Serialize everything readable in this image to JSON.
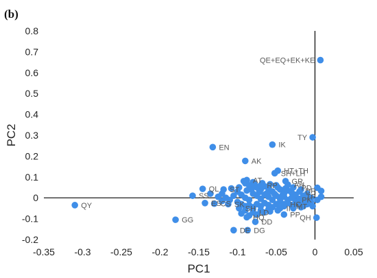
{
  "chart_data": {
    "type": "scatter",
    "panel_label": "(b)",
    "xlabel": "PC1",
    "ylabel": "PC2",
    "xlim": [
      -0.35,
      0.05
    ],
    "ylim": [
      -0.2,
      0.8
    ],
    "x_ticks": [
      "-0.35",
      "-0.3",
      "-0.25",
      "-0.2",
      "-0.15",
      "-0.1",
      "-0.05",
      "0",
      "0.05"
    ],
    "y_ticks": [
      "-0.2",
      "-0.1",
      "0",
      "0.1",
      "0.2",
      "0.3",
      "0.4",
      "0.5",
      "0.6",
      "0.7",
      "0.8"
    ],
    "grid": false,
    "marker_color": "#3f8ee8",
    "label_color": "#595959",
    "labeled_points": [
      {
        "label": "QE+EQ+EK+KE",
        "x": 0.007,
        "y": 0.66
      },
      {
        "label": "TY",
        "x": -0.003,
        "y": 0.29
      },
      {
        "label": "IK",
        "x": -0.055,
        "y": 0.255
      },
      {
        "label": "EN",
        "x": -0.132,
        "y": 0.243
      },
      {
        "label": "AK",
        "x": -0.09,
        "y": 0.177
      },
      {
        "label": "HT+TH",
        "x": -0.048,
        "y": 0.13
      },
      {
        "label": "SH+LH",
        "x": -0.052,
        "y": 0.118
      },
      {
        "label": "AT",
        "x": -0.088,
        "y": 0.085
      },
      {
        "label": "GR",
        "x": -0.038,
        "y": 0.08
      },
      {
        "label": "AH",
        "x": -0.035,
        "y": 0.063
      },
      {
        "label": "QL",
        "x": -0.145,
        "y": 0.043
      },
      {
        "label": "ST",
        "x": -0.118,
        "y": 0.04
      },
      {
        "label": "PD",
        "x": 0.003,
        "y": 0.048
      },
      {
        "label": "DP",
        "x": 0.008,
        "y": 0.033
      },
      {
        "label": "RP",
        "x": -0.07,
        "y": 0.06
      },
      {
        "label": "SS",
        "x": -0.158,
        "y": 0.01
      },
      {
        "label": "QY",
        "x": -0.31,
        "y": -0.035
      },
      {
        "label": "GG",
        "x": -0.18,
        "y": -0.105
      },
      {
        "label": "ES",
        "x": -0.142,
        "y": -0.025
      },
      {
        "label": "CS",
        "x": -0.13,
        "y": -0.028
      },
      {
        "label": "SK",
        "x": -0.112,
        "y": -0.03
      },
      {
        "label": "SH",
        "x": -0.098,
        "y": -0.05
      },
      {
        "label": "MT",
        "x": -0.003,
        "y": -0.04
      },
      {
        "label": "PK",
        "x": 0.003,
        "y": -0.01
      },
      {
        "label": "TP",
        "x": 0.008,
        "y": 0.005
      },
      {
        "label": "HC",
        "x": -0.04,
        "y": -0.03
      },
      {
        "label": "II",
        "x": -0.045,
        "y": -0.05
      },
      {
        "label": "PP",
        "x": -0.04,
        "y": -0.08
      },
      {
        "label": "QH",
        "x": 0.002,
        "y": -0.095
      },
      {
        "label": "LD",
        "x": -0.08,
        "y": -0.07
      },
      {
        "label": "HQ",
        "x": -0.088,
        "y": -0.093
      },
      {
        "label": "DD",
        "x": -0.077,
        "y": -0.115
      },
      {
        "label": "DE",
        "x": -0.105,
        "y": -0.155
      },
      {
        "label": "DG",
        "x": -0.087,
        "y": -0.155
      }
    ],
    "cluster_points": [
      {
        "x": -0.092,
        "y": 0.08
      },
      {
        "x": -0.09,
        "y": 0.07
      },
      {
        "x": -0.085,
        "y": 0.06
      },
      {
        "x": -0.08,
        "y": 0.075
      },
      {
        "x": -0.075,
        "y": 0.05
      },
      {
        "x": -0.07,
        "y": 0.04
      },
      {
        "x": -0.065,
        "y": 0.055
      },
      {
        "x": -0.06,
        "y": 0.045
      },
      {
        "x": -0.055,
        "y": 0.03
      },
      {
        "x": -0.05,
        "y": 0.06
      },
      {
        "x": -0.045,
        "y": 0.04
      },
      {
        "x": -0.04,
        "y": 0.02
      },
      {
        "x": -0.035,
        "y": 0.035
      },
      {
        "x": -0.03,
        "y": 0.025
      },
      {
        "x": -0.025,
        "y": 0.015
      },
      {
        "x": -0.02,
        "y": 0.03
      },
      {
        "x": -0.015,
        "y": 0.01
      },
      {
        "x": -0.01,
        "y": 0.02
      },
      {
        "x": -0.005,
        "y": 0.0
      },
      {
        "x": -0.1,
        "y": 0.03
      },
      {
        "x": -0.095,
        "y": 0.015
      },
      {
        "x": -0.09,
        "y": 0.0
      },
      {
        "x": -0.085,
        "y": -0.01
      },
      {
        "x": -0.08,
        "y": 0.02
      },
      {
        "x": -0.075,
        "y": 0.01
      },
      {
        "x": -0.07,
        "y": -0.005
      },
      {
        "x": -0.065,
        "y": 0.015
      },
      {
        "x": -0.06,
        "y": 0.005
      },
      {
        "x": -0.055,
        "y": -0.01
      },
      {
        "x": -0.05,
        "y": 0.01
      },
      {
        "x": -0.045,
        "y": -0.005
      },
      {
        "x": -0.04,
        "y": 0.005
      },
      {
        "x": -0.035,
        "y": -0.01
      },
      {
        "x": -0.03,
        "y": 0.0
      },
      {
        "x": -0.025,
        "y": -0.015
      },
      {
        "x": -0.02,
        "y": -0.005
      },
      {
        "x": -0.015,
        "y": -0.02
      },
      {
        "x": -0.01,
        "y": -0.01
      },
      {
        "x": -0.105,
        "y": 0.01
      },
      {
        "x": -0.11,
        "y": -0.01
      },
      {
        "x": -0.1,
        "y": -0.02
      },
      {
        "x": -0.095,
        "y": -0.03
      },
      {
        "x": -0.09,
        "y": -0.04
      },
      {
        "x": -0.085,
        "y": -0.035
      },
      {
        "x": -0.08,
        "y": -0.045
      },
      {
        "x": -0.075,
        "y": -0.03
      },
      {
        "x": -0.07,
        "y": -0.04
      },
      {
        "x": -0.065,
        "y": -0.025
      },
      {
        "x": -0.06,
        "y": -0.035
      },
      {
        "x": -0.055,
        "y": -0.045
      },
      {
        "x": -0.05,
        "y": -0.03
      },
      {
        "x": -0.045,
        "y": -0.02
      },
      {
        "x": -0.04,
        "y": -0.04
      },
      {
        "x": -0.035,
        "y": -0.025
      },
      {
        "x": -0.03,
        "y": -0.035
      },
      {
        "x": -0.025,
        "y": -0.03
      },
      {
        "x": -0.02,
        "y": -0.02
      },
      {
        "x": -0.015,
        "y": -0.04
      },
      {
        "x": -0.01,
        "y": -0.03
      },
      {
        "x": -0.005,
        "y": -0.02
      },
      {
        "x": -0.12,
        "y": 0.02
      },
      {
        "x": -0.125,
        "y": 0.005
      },
      {
        "x": -0.115,
        "y": 0.0
      },
      {
        "x": -0.12,
        "y": -0.015
      },
      {
        "x": -0.135,
        "y": 0.02
      },
      {
        "x": -0.108,
        "y": 0.045
      },
      {
        "x": -0.098,
        "y": 0.05
      },
      {
        "x": -0.082,
        "y": 0.04
      },
      {
        "x": -0.072,
        "y": 0.028
      },
      {
        "x": -0.062,
        "y": 0.022
      },
      {
        "x": -0.052,
        "y": 0.018
      },
      {
        "x": -0.042,
        "y": 0.012
      },
      {
        "x": -0.09,
        "y": -0.06
      },
      {
        "x": -0.08,
        "y": -0.055
      },
      {
        "x": -0.07,
        "y": -0.06
      },
      {
        "x": -0.06,
        "y": -0.055
      },
      {
        "x": -0.095,
        "y": -0.075
      },
      {
        "x": -0.085,
        "y": -0.085
      },
      {
        "x": -0.075,
        "y": -0.08
      },
      {
        "x": -0.066,
        "y": -0.07
      },
      {
        "x": -0.058,
        "y": -0.065
      },
      {
        "x": -0.048,
        "y": -0.06
      },
      {
        "x": -0.028,
        "y": -0.05
      },
      {
        "x": -0.018,
        "y": -0.045
      },
      {
        "x": -0.088,
        "y": 0.035
      },
      {
        "x": -0.078,
        "y": 0.065
      },
      {
        "x": -0.068,
        "y": 0.07
      },
      {
        "x": -0.058,
        "y": 0.065
      },
      {
        "x": -0.048,
        "y": 0.05
      },
      {
        "x": -0.038,
        "y": 0.045
      },
      {
        "x": -0.028,
        "y": 0.05
      },
      {
        "x": -0.018,
        "y": 0.04
      }
    ]
  }
}
